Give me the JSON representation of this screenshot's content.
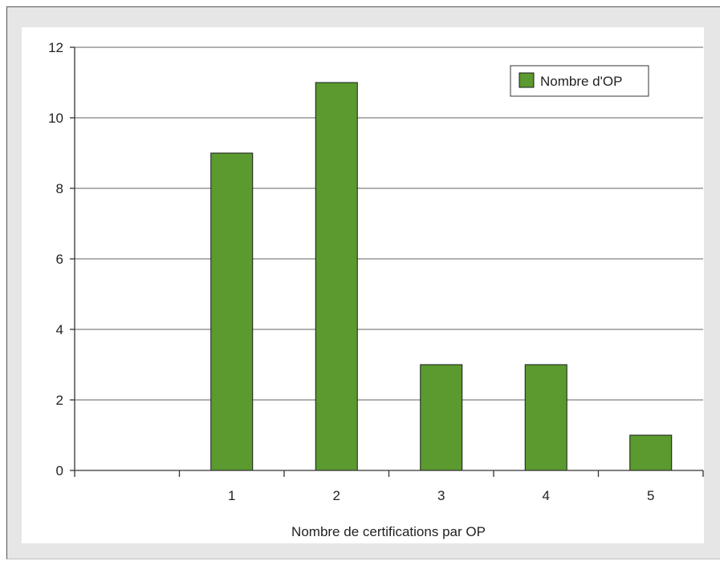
{
  "chart_data": {
    "type": "bar",
    "categories": [
      "",
      "1",
      "2",
      "3",
      "4",
      "5"
    ],
    "series": [
      {
        "name": "Nombre d'OP",
        "values": [
          0,
          9,
          11,
          3,
          3,
          1
        ]
      }
    ],
    "xlabel": "Nombre de certifications par OP",
    "ylabel": "",
    "ylim": [
      0,
      12
    ],
    "yticks": [
      "0",
      "2",
      "4",
      "6",
      "8",
      "10",
      "12"
    ],
    "grid": true,
    "legend_position": "top-right",
    "colors": {
      "bar": "#5a9a2e",
      "bar_border": "#1a1a1a",
      "grid": "#808080",
      "background": "#e6e6e6"
    }
  }
}
